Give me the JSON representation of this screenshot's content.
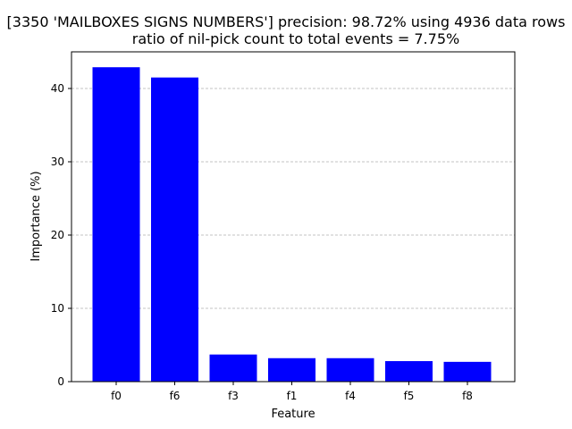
{
  "chart_data": {
    "type": "bar",
    "title_line1": "[3350 'MAILBOXES SIGNS NUMBERS'] precision: 98.72% using 4936 data rows",
    "title_line2": "ratio of nil-pick count to total events = 7.75%",
    "xlabel": "Feature",
    "ylabel": "Importance (%)",
    "categories": [
      "f0",
      "f6",
      "f3",
      "f1",
      "f4",
      "f5",
      "f8"
    ],
    "values": [
      42.9,
      41.5,
      3.7,
      3.2,
      3.2,
      2.8,
      2.7
    ],
    "ylim": [
      0,
      45
    ],
    "yticks": [
      "0",
      "10",
      "20",
      "30",
      "40"
    ],
    "grid": "y-dashed",
    "bar_color": "#0000ff",
    "grid_color": "#b0b0b0"
  }
}
